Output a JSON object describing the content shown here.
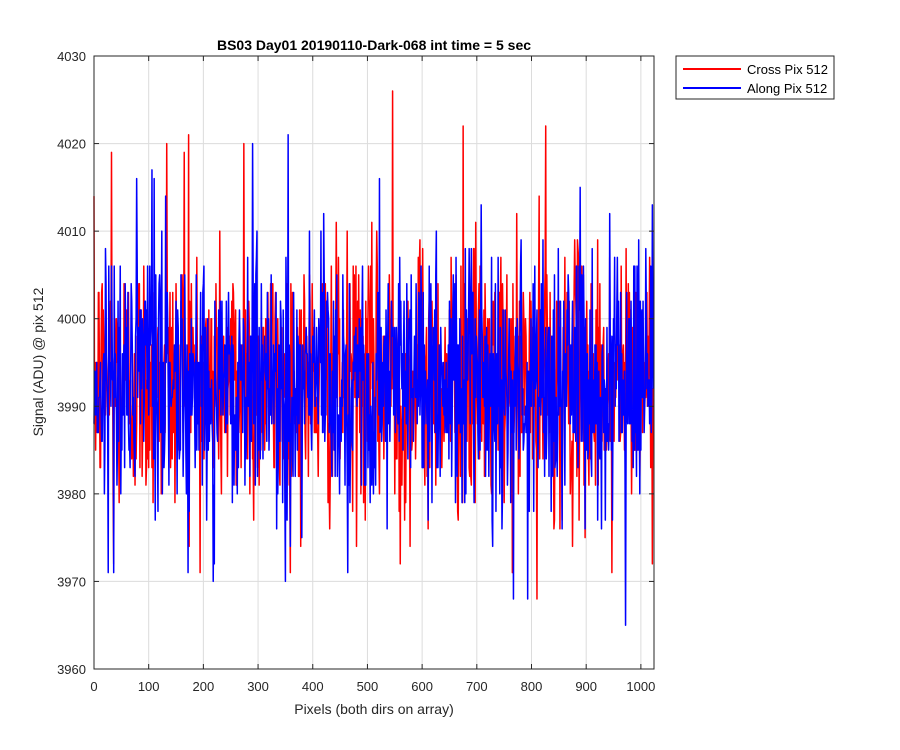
{
  "chart_data": {
    "type": "line",
    "title": "BS03 Day01 20190110-Dark-068 int time = 5 sec",
    "xlabel": "Pixels (both dirs on array)",
    "ylabel": "Signal (ADU) @ pix 512",
    "xlim": [
      0,
      1024
    ],
    "ylim": [
      3960,
      4030
    ],
    "xticks": [
      0,
      100,
      200,
      300,
      400,
      500,
      600,
      700,
      800,
      900,
      1000
    ],
    "yticks": [
      3960,
      3970,
      3980,
      3990,
      4000,
      4010,
      4020,
      4030
    ],
    "grid": true,
    "legend_position": "outside-top-right",
    "noise_model": {
      "points_per_series": 1024,
      "mean": 3993,
      "std": 7.5
    },
    "series": [
      {
        "name": "Cross Pix 512",
        "color": "#ff0000",
        "mean": 3993,
        "extremes": [
          {
            "x": 32,
            "y": 4019
          },
          {
            "x": 36,
            "y": 3972
          },
          {
            "x": 133,
            "y": 4020
          },
          {
            "x": 165,
            "y": 4019
          },
          {
            "x": 173,
            "y": 4021
          },
          {
            "x": 274,
            "y": 4020
          },
          {
            "x": 546,
            "y": 4026
          },
          {
            "x": 560,
            "y": 3972
          },
          {
            "x": 675,
            "y": 4022
          },
          {
            "x": 810,
            "y": 3968
          },
          {
            "x": 826,
            "y": 4022
          },
          {
            "x": 947,
            "y": 3971
          }
        ]
      },
      {
        "name": "Along Pix 512",
        "color": "#0000ff",
        "mean": 3993,
        "extremes": [
          {
            "x": 106,
            "y": 4017
          },
          {
            "x": 110,
            "y": 4016
          },
          {
            "x": 218,
            "y": 3970
          },
          {
            "x": 290,
            "y": 4020
          },
          {
            "x": 350,
            "y": 3970
          },
          {
            "x": 355,
            "y": 4021
          },
          {
            "x": 522,
            "y": 4016
          },
          {
            "x": 767,
            "y": 3968
          },
          {
            "x": 793,
            "y": 3968
          },
          {
            "x": 972,
            "y": 3965
          }
        ]
      }
    ]
  }
}
